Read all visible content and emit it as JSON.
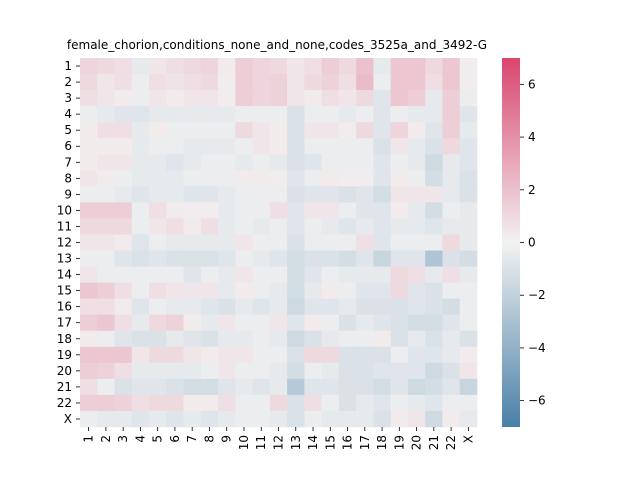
{
  "chart_data": {
    "type": "heatmap",
    "title": "female_chorion,conditions_none_and_none,codes_3525a_and_3492-G",
    "xlabel": "",
    "ylabel": "",
    "x_labels": [
      "1",
      "2",
      "3",
      "4",
      "5",
      "6",
      "7",
      "8",
      "9",
      "10",
      "11",
      "12",
      "13",
      "14",
      "15",
      "16",
      "17",
      "18",
      "19",
      "20",
      "21",
      "22",
      "X"
    ],
    "y_labels": [
      "1",
      "2",
      "3",
      "4",
      "5",
      "6",
      "7",
      "8",
      "9",
      "10",
      "11",
      "12",
      "13",
      "14",
      "15",
      "16",
      "17",
      "18",
      "19",
      "20",
      "21",
      "22",
      "X"
    ],
    "colorbar": {
      "vmin": -7,
      "vmax": 7,
      "ticks": [
        -6,
        -4,
        -2,
        0,
        2,
        4,
        6
      ],
      "colormap": "diverging blue-white-red",
      "low_color": "#4a80a8",
      "mid_color": "#f2f2f2",
      "high_color": "#d9456f"
    },
    "values": [
      [
        1.2,
        1.0,
        0.8,
        -0.5,
        0.5,
        0.8,
        1.0,
        1.2,
        0.3,
        1.5,
        1.2,
        1.0,
        0.5,
        0.8,
        1.5,
        1.0,
        2.0,
        -0.5,
        1.8,
        1.8,
        1.0,
        1.8,
        0.2
      ],
      [
        1.0,
        0.5,
        0.8,
        -0.3,
        0.8,
        0.6,
        0.8,
        1.0,
        0.2,
        1.5,
        1.2,
        1.3,
        0.5,
        1.0,
        1.3,
        0.8,
        2.2,
        -0.3,
        1.8,
        1.8,
        0.8,
        1.8,
        0.2
      ],
      [
        0.8,
        0.5,
        0.3,
        -0.3,
        0.5,
        0.3,
        0.5,
        0.5,
        0.2,
        1.5,
        1.2,
        1.3,
        0.5,
        0.3,
        0.8,
        0.5,
        1.0,
        -0.8,
        1.8,
        1.5,
        -0.5,
        1.5,
        -0.3
      ],
      [
        -0.3,
        -0.5,
        -0.8,
        -0.8,
        -0.5,
        -0.5,
        -0.5,
        -0.5,
        -0.5,
        -0.3,
        -0.3,
        -0.3,
        -1.0,
        -0.3,
        -0.3,
        -0.5,
        -0.3,
        -0.8,
        -0.3,
        -0.5,
        -0.5,
        1.5,
        -0.8
      ],
      [
        0.3,
        0.8,
        0.8,
        -0.5,
        0.3,
        -0.3,
        -0.3,
        -0.3,
        -0.3,
        1.0,
        0.5,
        0.3,
        -1.0,
        0.5,
        0.5,
        0.2,
        1.0,
        -0.8,
        1.2,
        0.3,
        -0.8,
        1.5,
        -0.5
      ],
      [
        0.3,
        0.3,
        0.3,
        -0.5,
        -0.3,
        -0.3,
        -0.5,
        -0.5,
        -0.5,
        -0.3,
        0.5,
        0.3,
        -1.0,
        -0.3,
        -0.3,
        -0.3,
        -0.3,
        -1.0,
        0.5,
        -0.5,
        -1.0,
        1.0,
        -0.8
      ],
      [
        0.3,
        0.5,
        0.5,
        -0.5,
        -0.5,
        -0.8,
        -0.5,
        -0.3,
        -0.3,
        -0.5,
        -0.3,
        -0.5,
        -1.0,
        -0.8,
        -0.3,
        -0.3,
        -0.3,
        -0.8,
        -0.3,
        -0.5,
        -1.5,
        -0.5,
        -0.8
      ],
      [
        0.5,
        0.3,
        -0.3,
        -0.5,
        -0.5,
        -0.5,
        -0.3,
        -0.3,
        -0.3,
        0.3,
        0.3,
        0.2,
        -0.8,
        -0.3,
        0.3,
        0.2,
        0.2,
        -0.8,
        0.3,
        -0.3,
        -1.3,
        -0.5,
        -1.0
      ],
      [
        -0.3,
        -0.3,
        -0.5,
        -0.8,
        -0.5,
        -0.5,
        -0.8,
        -0.8,
        -0.5,
        -0.3,
        -0.3,
        -0.3,
        -1.0,
        -0.8,
        -0.8,
        -1.0,
        -0.8,
        -1.3,
        0.5,
        0.5,
        0.5,
        -0.5,
        -1.0
      ],
      [
        1.5,
        1.5,
        1.5,
        -0.3,
        0.8,
        0.3,
        0.2,
        0.2,
        -0.5,
        -0.3,
        -0.3,
        0.8,
        -0.8,
        0.5,
        0.5,
        -0.3,
        -0.8,
        -0.8,
        0.3,
        -0.5,
        -1.3,
        -0.3,
        -0.5
      ],
      [
        1.0,
        1.0,
        1.0,
        -0.3,
        0.5,
        0.8,
        0.3,
        0.8,
        -0.5,
        -0.3,
        -0.5,
        -0.3,
        -0.8,
        -0.3,
        -0.5,
        -0.8,
        -0.5,
        -0.8,
        -0.5,
        -0.5,
        -0.8,
        -0.5,
        -0.5
      ],
      [
        0.5,
        0.5,
        0.3,
        -0.8,
        -0.3,
        -0.5,
        -0.5,
        -0.5,
        -0.5,
        0.5,
        -0.3,
        -0.3,
        -1.0,
        -0.3,
        -0.3,
        -0.3,
        0.8,
        -0.8,
        -0.3,
        -0.3,
        -0.3,
        1.0,
        -0.5
      ],
      [
        -0.3,
        -0.3,
        -0.8,
        -1.0,
        -0.8,
        -1.0,
        -1.0,
        -1.0,
        -0.8,
        -0.3,
        -0.5,
        -0.8,
        -1.3,
        -1.0,
        -1.0,
        -1.3,
        -0.8,
        -1.8,
        -0.8,
        -0.8,
        -2.8,
        -1.0,
        -1.3
      ],
      [
        0.5,
        -0.3,
        -0.3,
        -0.3,
        -0.3,
        -0.3,
        -0.8,
        -0.3,
        -0.5,
        0.5,
        -0.3,
        -0.3,
        -1.3,
        -0.8,
        -0.3,
        -0.5,
        -0.5,
        -0.5,
        1.0,
        0.8,
        -0.5,
        0.8,
        -0.5
      ],
      [
        1.8,
        1.5,
        0.8,
        -0.3,
        0.8,
        0.5,
        0.5,
        0.5,
        -0.5,
        0.3,
        -0.3,
        -0.5,
        -1.3,
        -0.5,
        0.3,
        -0.3,
        -0.8,
        -0.8,
        1.0,
        -0.8,
        -1.0,
        -0.3,
        -0.3
      ],
      [
        0.8,
        0.8,
        0.3,
        -0.8,
        -0.3,
        -0.5,
        -0.5,
        -0.8,
        -1.0,
        -0.5,
        -0.8,
        -0.5,
        -1.5,
        -0.8,
        -0.8,
        -0.5,
        -1.0,
        -1.0,
        -1.0,
        -0.8,
        -1.0,
        -1.3,
        -0.3
      ],
      [
        1.5,
        1.8,
        0.8,
        -0.5,
        1.0,
        1.3,
        0.3,
        -0.5,
        0.5,
        -0.3,
        -0.3,
        0.5,
        -0.8,
        0.3,
        -0.3,
        -1.0,
        -0.5,
        -0.8,
        -1.0,
        -1.3,
        -1.3,
        -0.8,
        -0.3
      ],
      [
        0.3,
        -0.3,
        -0.8,
        -1.0,
        -1.0,
        -0.5,
        -0.8,
        -1.0,
        -0.5,
        -0.5,
        -0.3,
        -0.5,
        -1.5,
        -1.0,
        -0.5,
        -0.3,
        -0.3,
        0.3,
        -1.0,
        -0.5,
        -1.0,
        -0.5,
        -1.0
      ],
      [
        1.8,
        1.8,
        1.8,
        0.5,
        1.0,
        1.0,
        0.5,
        0.3,
        0.5,
        0.5,
        -0.3,
        -0.3,
        -1.0,
        1.0,
        1.0,
        -1.0,
        -1.0,
        -1.0,
        -0.3,
        -0.8,
        -0.8,
        -0.5,
        0.3
      ],
      [
        1.5,
        1.3,
        0.8,
        -0.5,
        -0.5,
        -0.5,
        -0.5,
        -0.3,
        0.5,
        -0.3,
        -0.3,
        -0.5,
        -1.3,
        -0.3,
        -0.5,
        -1.0,
        -1.0,
        -0.8,
        -0.8,
        -0.8,
        -1.5,
        -1.0,
        0.5
      ],
      [
        0.8,
        -0.3,
        -1.0,
        -0.8,
        -0.8,
        -1.0,
        -1.3,
        -1.3,
        -0.8,
        -0.5,
        -0.8,
        -0.5,
        -2.5,
        -0.8,
        -0.8,
        -1.0,
        -1.0,
        -1.3,
        -0.8,
        -1.5,
        -1.3,
        -0.8,
        -1.8
      ],
      [
        1.5,
        1.5,
        1.3,
        0.8,
        1.0,
        1.0,
        0.3,
        0.3,
        0.8,
        -0.3,
        -0.3,
        1.0,
        -1.0,
        0.8,
        -0.3,
        -1.0,
        -0.5,
        -0.8,
        -0.3,
        -0.5,
        -0.8,
        -0.3,
        -0.3
      ],
      [
        -0.3,
        -0.5,
        -0.5,
        -0.8,
        -0.5,
        -0.8,
        -0.5,
        -0.8,
        -0.5,
        -0.3,
        -0.3,
        -0.5,
        -1.0,
        -0.3,
        -0.5,
        -0.5,
        -0.5,
        -1.0,
        0.3,
        0.5,
        -1.5,
        0.3,
        -0.5
      ]
    ]
  }
}
